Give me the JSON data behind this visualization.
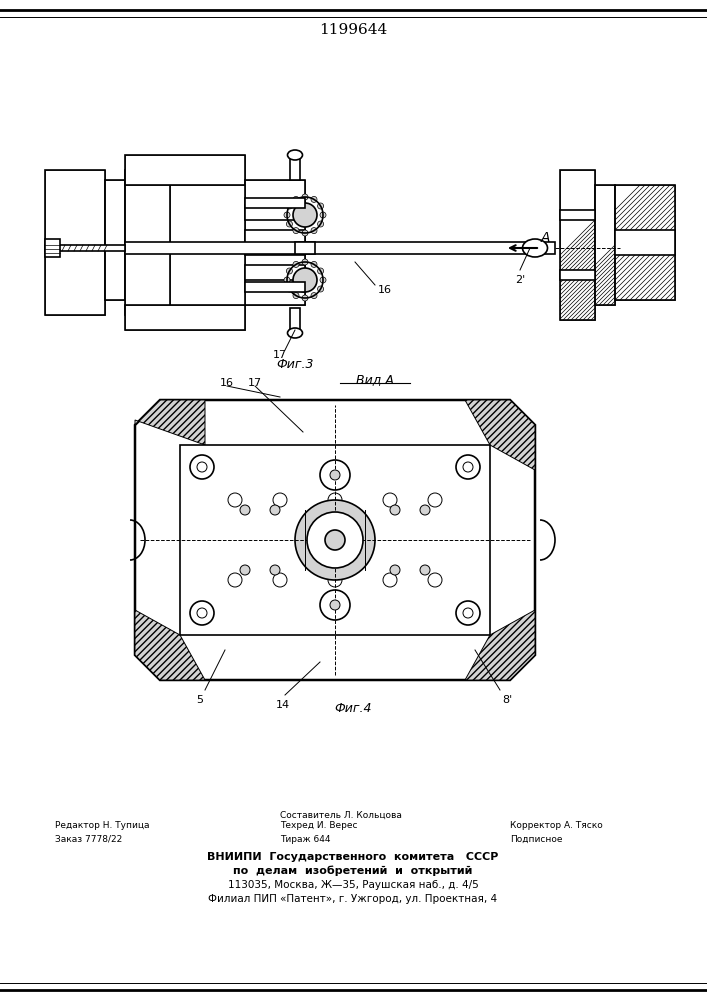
{
  "patent_number": "1199644",
  "fig3_label": "Фиг.3",
  "fig4_label": "Фиг.4",
  "view_label": "Вид A",
  "arrow_label": "A",
  "part_labels": {
    "16": [
      16,
      "16"
    ],
    "17": [
      17,
      "17"
    ],
    "2": [
      2,
      "2"
    ],
    "5": [
      5,
      "5"
    ],
    "14": [
      14,
      "14"
    ],
    "8": [
      8,
      "8"
    ]
  },
  "footer_lines": [
    [
      "Редактор Н. Тупица",
      "Составитель Л. Кольцова",
      ""
    ],
    [
      "Заказ 7778/22",
      "Техред И. Верес",
      "Корректор А. Тяско"
    ],
    [
      "",
      "Тираж 644",
      "Подписное"
    ]
  ],
  "footer_vnipi": "ВНИИПИ  Государственного  комитета   СССР",
  "footer_line2": "по  делам  изобретений  и  открытий",
  "footer_line3": "113035, Москва, Ж—35, Раушская наб., д. 4/5",
  "footer_line4": "Филиал ПИП «Патент», г. Ужгород, ул. Проектная, 4",
  "bg_color": "#ffffff",
  "line_color": "#000000",
  "hatch_color": "#000000",
  "fig_width": 7.07,
  "fig_height": 10.0,
  "dpi": 100
}
